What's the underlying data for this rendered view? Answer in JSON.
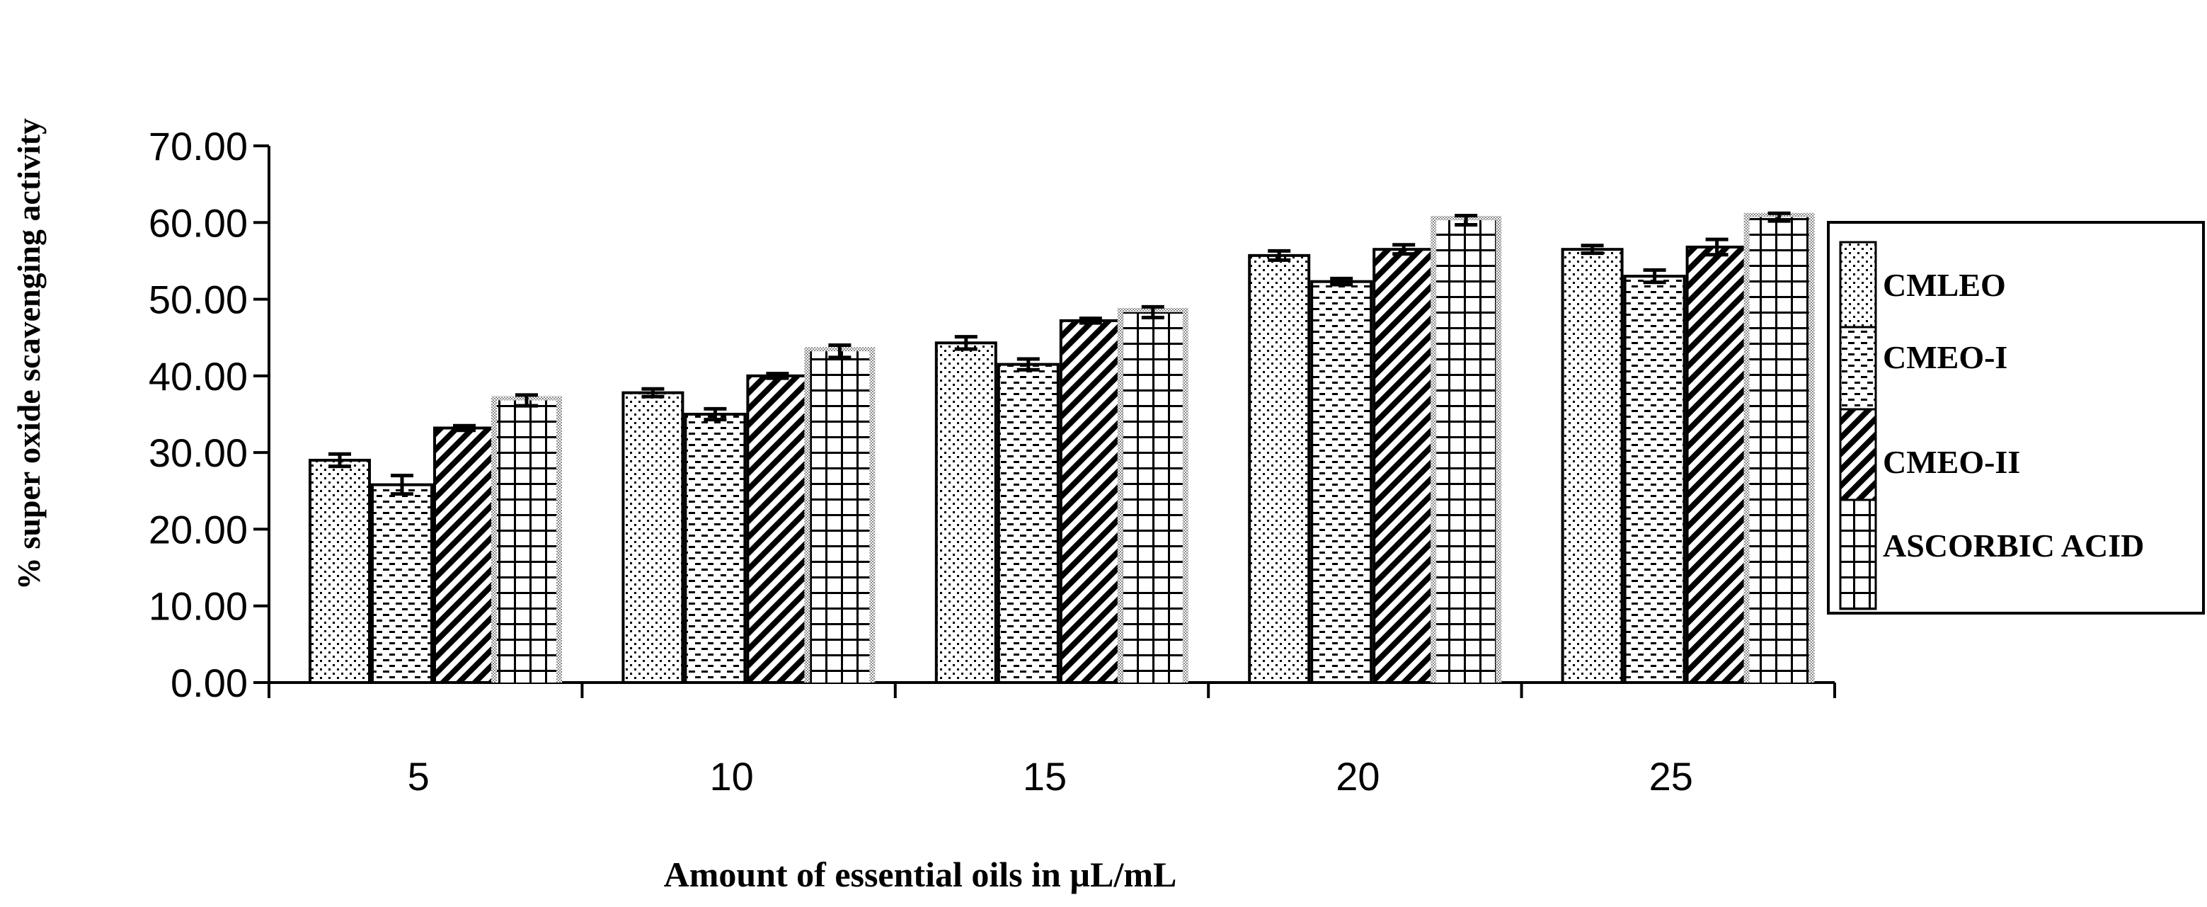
{
  "chart_data": {
    "type": "bar",
    "title": "",
    "xlabel": "Amount of essential oils in µL/mL",
    "ylabel": "% super oxide scavenging activity",
    "categories": [
      "5",
      "10",
      "15",
      "20",
      "25"
    ],
    "ylim": [
      0,
      70
    ],
    "yticks": [
      "0.00",
      "10.00",
      "20.00",
      "30.00",
      "40.00",
      "50.00",
      "60.00",
      "70.00"
    ],
    "grid": false,
    "legend_position": "right",
    "series": [
      {
        "name": "CMLEO",
        "pattern": "dots",
        "values": [
          29.0,
          37.8,
          44.3,
          55.7,
          56.5
        ],
        "errors": [
          0.8,
          0.5,
          0.8,
          0.6,
          0.5
        ]
      },
      {
        "name": "CMEO-I",
        "pattern": "dashes",
        "values": [
          25.8,
          35.0,
          41.5,
          52.3,
          53.0
        ],
        "errors": [
          1.2,
          0.7,
          0.7,
          0.4,
          0.8
        ]
      },
      {
        "name": "CMEO-II",
        "pattern": "diagonal",
        "values": [
          33.2,
          40.0,
          47.2,
          56.5,
          56.8
        ],
        "errors": [
          0.3,
          0.3,
          0.3,
          0.6,
          1.0
        ]
      },
      {
        "name": "ASCORBIC ACID",
        "pattern": "grid",
        "values": [
          36.8,
          43.2,
          48.3,
          60.3,
          60.7
        ],
        "errors": [
          0.7,
          0.8,
          0.7,
          0.6,
          0.5
        ]
      }
    ]
  }
}
